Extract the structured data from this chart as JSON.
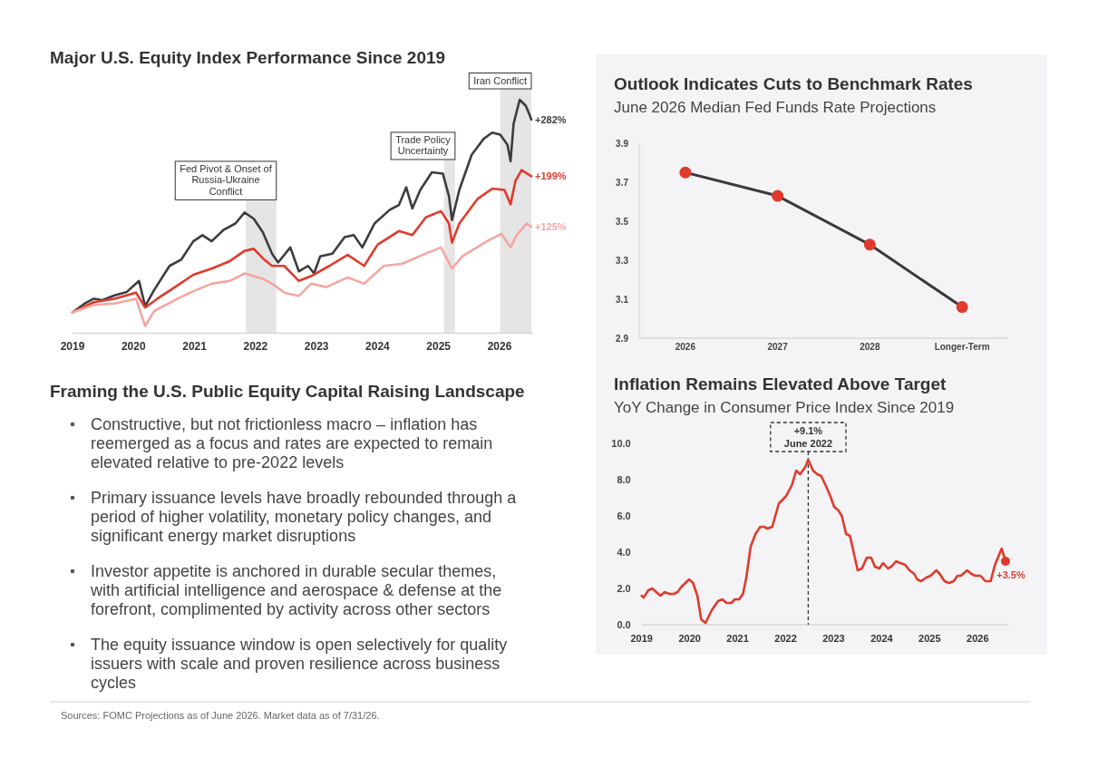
{
  "chart_data": [
    {
      "type": "line",
      "title": "Major U.S. Equity Index Performance Since 2019",
      "xlim": [
        2019,
        2026.55
      ],
      "xticks": [
        2019,
        2020,
        2021,
        2022,
        2023,
        2024,
        2025,
        2026
      ],
      "tick_labels": "x",
      "series": [
        {
          "color": "#3d3d3f",
          "x": [
            2019.0,
            2019.2,
            2019.35,
            2019.49,
            2019.69,
            2019.89,
            2020.09,
            2020.19,
            2020.34,
            2020.59,
            2020.78,
            2020.98,
            2021.13,
            2021.28,
            2021.48,
            2021.67,
            2021.82,
            2021.97,
            2022.12,
            2022.27,
            2022.37,
            2022.57,
            2022.71,
            2022.86,
            2022.96,
            2023.06,
            2023.26,
            2023.46,
            2023.61,
            2023.75,
            2023.95,
            2024.2,
            2024.35,
            2024.47,
            2024.57,
            2024.7,
            2024.89,
            2025.07,
            2025.17,
            2025.22,
            2025.34,
            2025.54,
            2025.74,
            2025.88,
            2026.01,
            2026.13,
            2026.18,
            2026.23,
            2026.33,
            2026.43,
            2026.5,
            2026.52
          ],
          "values": [
            0,
            13,
            20,
            18,
            25,
            30,
            46,
            9,
            33,
            68,
            77,
            104,
            113,
            104,
            121,
            130,
            146,
            137,
            117,
            86,
            73,
            95,
            60,
            68,
            57,
            82,
            86,
            110,
            113,
            95,
            130,
            150,
            157,
            183,
            152,
            179,
            205,
            203,
            170,
            135,
            179,
            230,
            254,
            263,
            260,
            245,
            221,
            276,
            311,
            302,
            287,
            282
          ],
          "value_labels": [
            null,
            null,
            null,
            null,
            null,
            null,
            null,
            null,
            null,
            null,
            null,
            null,
            null,
            null,
            null,
            null,
            null,
            null,
            null,
            null,
            null,
            null,
            null,
            null,
            null,
            null,
            null,
            null,
            null,
            null,
            null,
            null,
            null,
            null,
            null,
            null,
            null,
            null,
            null,
            null,
            null,
            null,
            null,
            null,
            null,
            null,
            null,
            null,
            null,
            null,
            null,
            "+282%"
          ]
        },
        {
          "color": "#e03a2c",
          "x": [
            2019.0,
            2019.35,
            2019.69,
            2020.04,
            2020.19,
            2020.39,
            2020.68,
            2020.98,
            2021.28,
            2021.58,
            2021.82,
            2021.97,
            2022.12,
            2022.27,
            2022.47,
            2022.71,
            2022.91,
            2023.21,
            2023.51,
            2023.78,
            2024.0,
            2024.35,
            2024.57,
            2024.79,
            2025.04,
            2025.17,
            2025.22,
            2025.34,
            2025.64,
            2025.88,
            2026.08,
            2026.18,
            2026.26,
            2026.36,
            2026.52
          ],
          "values": [
            0,
            15,
            20,
            29,
            7,
            20,
            37,
            55,
            64,
            75,
            90,
            93,
            79,
            68,
            68,
            46,
            53,
            68,
            84,
            68,
            99,
            119,
            113,
            139,
            148,
            130,
            102,
            130,
            166,
            181,
            179,
            158,
            192,
            208,
            199
          ],
          "value_labels": [
            null,
            null,
            null,
            null,
            null,
            null,
            null,
            null,
            null,
            null,
            null,
            null,
            null,
            null,
            null,
            null,
            null,
            null,
            null,
            null,
            null,
            null,
            null,
            null,
            null,
            null,
            null,
            null,
            null,
            null,
            null,
            null,
            null,
            null,
            "+199%"
          ]
        },
        {
          "color": "#f4a6a1",
          "x": [
            2019.0,
            2019.35,
            2019.69,
            2020.04,
            2020.19,
            2020.34,
            2020.68,
            2020.98,
            2021.28,
            2021.58,
            2021.82,
            2022.12,
            2022.27,
            2022.47,
            2022.71,
            2022.91,
            2023.16,
            2023.51,
            2023.78,
            2024.1,
            2024.4,
            2024.79,
            2025.04,
            2025.22,
            2025.39,
            2025.79,
            2026.03,
            2026.18,
            2026.28,
            2026.45,
            2026.52
          ],
          "values": [
            0,
            11,
            13,
            20,
            -20,
            2,
            18,
            31,
            42,
            46,
            57,
            49,
            42,
            29,
            24,
            42,
            37,
            51,
            42,
            68,
            71,
            86,
            95,
            64,
            82,
            104,
            115,
            95,
            113,
            130,
            125
          ],
          "value_labels": [
            null,
            null,
            null,
            null,
            null,
            null,
            null,
            null,
            null,
            null,
            null,
            null,
            null,
            null,
            null,
            null,
            null,
            null,
            null,
            null,
            null,
            null,
            null,
            null,
            null,
            null,
            null,
            null,
            null,
            null,
            "+125%"
          ]
        }
      ],
      "bands": [
        {
          "axis": "x",
          "from": 2021.84,
          "to": 2022.34,
          "label": "Fed Pivot & Onset of Russia-Ukraine Conflict",
          "color": "#e5e5e5"
        },
        {
          "axis": "x",
          "from": 2025.09,
          "to": 2025.27,
          "label": "Trade Policy Uncertainty",
          "color": "#e5e5e5"
        },
        {
          "axis": "x",
          "from": 2026.01,
          "to": 2026.52,
          "label": "Iran Conflict",
          "color": "#e5e5e5"
        }
      ],
      "annotations": [
        "Sources: FOMC Projections as of June 2026. Market data as of 7/31/26."
      ]
    },
    {
      "type": "other",
      "title": "Framing the U.S. Public Equity Capital Raising Landscape",
      "annotations": [
        "Constructive, but not frictionless macro – inflation has reemerged as a focus and rates are expected to remain elevated relative to pre-2022 levels",
        "Primary issuance levels have broadly rebounded through a period of higher volatility, monetary policy changes, and significant energy market disruptions",
        "Investor appetite is anchored in durable secular themes, with artificial intelligence and aerospace & defense at the forefront, complimented by activity across other sectors",
        "The equity issuance window is open selectively for quality issuers with scale and proven resilience across business cycles"
      ]
    },
    {
      "type": "line",
      "title": "Outlook Indicates Cuts to Benchmark Rates",
      "subtitle": "June 2026 Median Fed Funds Rate Projections",
      "categories": [
        "2026",
        "2027",
        "2028",
        "Longer-Term"
      ],
      "values": [
        3.75,
        3.63,
        3.38,
        3.06
      ],
      "color": "#3a3a3c",
      "colors": [
        "#e03a2c",
        "#e03a2c",
        "#e03a2c",
        "#e03a2c"
      ],
      "marker": "circle",
      "ylim": [
        2.9,
        3.9
      ],
      "yticks": [
        2.9,
        3.1,
        3.3,
        3.5,
        3.7,
        3.9
      ]
    },
    {
      "type": "line",
      "title": "Inflation Remains Elevated Above Target",
      "subtitle": "YoY Change in Consumer Price Index Since 2019",
      "color": "#e03a2c",
      "xlim": [
        2019,
        2026.65
      ],
      "xticks": [
        2019,
        2020,
        2021,
        2022,
        2023,
        2024,
        2025,
        2026
      ],
      "ylim": [
        0,
        10
      ],
      "yticks": [
        {
          "value": 0,
          "label": "0.0"
        },
        {
          "value": 2,
          "label": "2.0"
        },
        {
          "value": 4,
          "label": "4.0"
        },
        {
          "value": 6,
          "label": "6.0"
        },
        {
          "value": 8,
          "label": "8.0"
        },
        {
          "value": 10,
          "label": "10.0"
        }
      ],
      "x": [
        2019.0,
        2019.04,
        2019.14,
        2019.22,
        2019.39,
        2019.48,
        2019.58,
        2019.67,
        2019.75,
        2019.83,
        2019.99,
        2020.07,
        2020.16,
        2020.24,
        2020.33,
        2020.46,
        2020.59,
        2020.68,
        2020.77,
        2020.87,
        2020.94,
        2021.03,
        2021.11,
        2021.18,
        2021.27,
        2021.37,
        2021.47,
        2021.55,
        2021.62,
        2021.72,
        2021.86,
        2021.94,
        2022.01,
        2022.13,
        2022.22,
        2022.3,
        2022.41,
        2022.47,
        2022.57,
        2022.66,
        2022.74,
        2022.83,
        2022.93,
        2023.01,
        2023.1,
        2023.17,
        2023.26,
        2023.34,
        2023.5,
        2023.59,
        2023.69,
        2023.78,
        2023.86,
        2023.95,
        2024.03,
        2024.13,
        2024.2,
        2024.3,
        2024.39,
        2024.49,
        2024.58,
        2024.68,
        2024.74,
        2024.82,
        2024.93,
        2025.02,
        2025.14,
        2025.21,
        2025.31,
        2025.4,
        2025.5,
        2025.58,
        2025.65,
        2025.78,
        2025.87,
        2025.95,
        2026.06,
        2026.16,
        2026.27,
        2026.36,
        2026.5,
        2026.58
      ],
      "values": [
        1.6,
        1.5,
        1.9,
        2.0,
        1.6,
        1.8,
        1.7,
        1.7,
        1.8,
        2.1,
        2.5,
        2.3,
        1.6,
        0.3,
        0.1,
        0.8,
        1.3,
        1.4,
        1.2,
        1.2,
        1.4,
        1.4,
        1.7,
        2.6,
        4.3,
        5.0,
        5.4,
        5.4,
        5.3,
        5.4,
        6.7,
        6.9,
        7.1,
        7.7,
        8.5,
        8.3,
        8.7,
        9.1,
        8.5,
        8.3,
        8.2,
        7.7,
        7.1,
        6.5,
        6.3,
        6.0,
        5.0,
        4.9,
        3.0,
        3.1,
        3.7,
        3.7,
        3.2,
        3.1,
        3.4,
        3.1,
        3.2,
        3.5,
        3.4,
        3.3,
        3.0,
        2.8,
        2.5,
        2.4,
        2.6,
        2.7,
        3.0,
        2.8,
        2.4,
        2.3,
        2.4,
        2.7,
        2.7,
        3.0,
        2.8,
        2.7,
        2.7,
        2.4,
        2.4,
        3.3,
        4.2,
        3.5
      ],
      "value_labels": [
        null,
        null,
        null,
        null,
        null,
        null,
        null,
        null,
        null,
        null,
        null,
        null,
        null,
        null,
        null,
        null,
        null,
        null,
        null,
        null,
        null,
        null,
        null,
        null,
        null,
        null,
        null,
        null,
        null,
        null,
        null,
        null,
        null,
        null,
        null,
        null,
        null,
        null,
        null,
        null,
        null,
        null,
        null,
        null,
        null,
        null,
        null,
        null,
        null,
        null,
        null,
        null,
        null,
        null,
        null,
        null,
        null,
        null,
        null,
        null,
        null,
        null,
        null,
        null,
        null,
        null,
        null,
        null,
        null,
        null,
        null,
        null,
        null,
        null,
        null,
        null,
        null,
        null,
        null,
        null,
        null,
        "+3.5%"
      ],
      "ref_lines": [
        {
          "axis": "x",
          "value": 2022.47,
          "label": "+9.1% June 2022",
          "line_style": "dashed"
        }
      ]
    }
  ]
}
